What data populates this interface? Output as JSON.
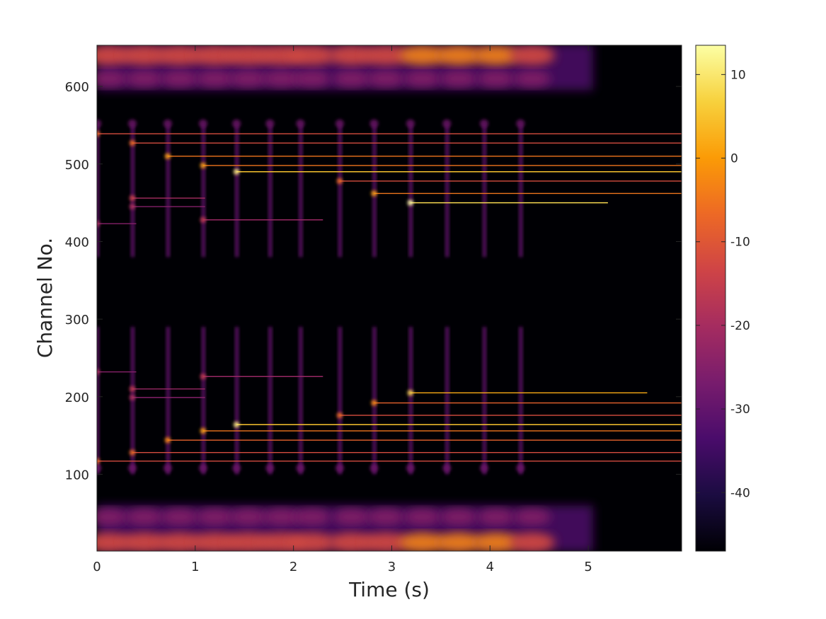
{
  "chart_data": {
    "type": "heatmap",
    "title": "",
    "xlabel": "Time (s)",
    "ylabel": "Channel No.",
    "xlim": [
      0,
      5.95
    ],
    "ylim": [
      1,
      653
    ],
    "xticks": [
      0,
      1,
      2,
      3,
      4,
      5
    ],
    "xtick_labels": [
      "0",
      "1",
      "2",
      "3",
      "4",
      "5"
    ],
    "yticks": [
      100,
      200,
      300,
      400,
      500,
      600
    ],
    "ytick_labels": [
      "100",
      "200",
      "300",
      "400",
      "500",
      "600"
    ],
    "colorbar": {
      "range": [
        -47,
        13.5
      ],
      "ticks": [
        10,
        0,
        -10,
        -20,
        -30,
        -40
      ],
      "tick_labels": [
        "10",
        "0",
        "-10",
        "-20",
        "-30",
        "-40"
      ],
      "colormap": "inferno",
      "colors": [
        "#000004",
        "#1b0c41",
        "#4a0c6b",
        "#781c6d",
        "#a52c60",
        "#cf4446",
        "#ed6925",
        "#fb9b06",
        "#f7d13d",
        "#fcffa4"
      ]
    },
    "background_level": -47,
    "note_onsets_s": [
      0.0,
      0.36,
      0.72,
      1.08,
      1.42,
      1.76,
      2.07,
      2.47,
      2.82,
      3.19,
      3.56,
      3.94,
      4.31
    ],
    "harmonic_lines": [
      {
        "channel": 539,
        "start": 0.0,
        "end": 5.95,
        "level": -12
      },
      {
        "channel": 527,
        "start": 0.36,
        "end": 5.95,
        "level": -12
      },
      {
        "channel": 510,
        "start": 0.72,
        "end": 5.95,
        "level": -5
      },
      {
        "channel": 498,
        "start": 1.08,
        "end": 5.95,
        "level": -5
      },
      {
        "channel": 490,
        "start": 1.42,
        "end": 5.95,
        "level": 5
      },
      {
        "channel": 478,
        "start": 2.47,
        "end": 5.95,
        "level": -12
      },
      {
        "channel": 462,
        "start": 2.82,
        "end": 5.95,
        "level": -5
      },
      {
        "channel": 450,
        "start": 3.19,
        "end": 5.2,
        "level": 8
      },
      {
        "channel": 456,
        "start": 0.36,
        "end": 1.1,
        "level": -20
      },
      {
        "channel": 445,
        "start": 0.36,
        "end": 1.1,
        "level": -25
      },
      {
        "channel": 423,
        "start": 0.0,
        "end": 0.4,
        "level": -25
      },
      {
        "channel": 428,
        "start": 1.08,
        "end": 2.3,
        "level": -22
      },
      {
        "channel": 232,
        "start": 0.0,
        "end": 0.4,
        "level": -25
      },
      {
        "channel": 210,
        "start": 0.36,
        "end": 1.1,
        "level": -22
      },
      {
        "channel": 199,
        "start": 0.36,
        "end": 1.1,
        "level": -25
      },
      {
        "channel": 226,
        "start": 1.08,
        "end": 2.3,
        "level": -22
      },
      {
        "channel": 205,
        "start": 3.19,
        "end": 5.6,
        "level": 2
      },
      {
        "channel": 192,
        "start": 2.82,
        "end": 5.95,
        "level": -8
      },
      {
        "channel": 176,
        "start": 2.47,
        "end": 5.95,
        "level": -12
      },
      {
        "channel": 164,
        "start": 1.42,
        "end": 5.95,
        "level": 5
      },
      {
        "channel": 156,
        "start": 1.08,
        "end": 5.95,
        "level": -5
      },
      {
        "channel": 144,
        "start": 0.72,
        "end": 5.95,
        "level": -8
      },
      {
        "channel": 128,
        "start": 0.36,
        "end": 5.95,
        "level": -12
      },
      {
        "channel": 117,
        "start": 0.0,
        "end": 5.95,
        "level": -12
      }
    ]
  }
}
